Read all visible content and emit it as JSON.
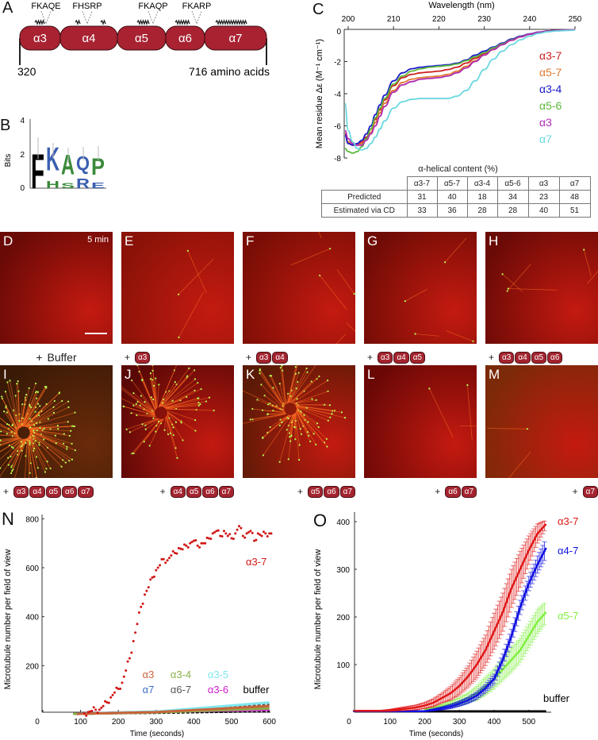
{
  "panel_a": {
    "label": "A",
    "domains": [
      "α3",
      "α4",
      "α5",
      "α6",
      "α7"
    ],
    "motifs": [
      "FKAQE",
      "FHSRP",
      "FKAQP",
      "FKARP"
    ],
    "start": "320",
    "end": "716 amino acids",
    "domain_color": "#a82232"
  },
  "panel_b": {
    "label": "B",
    "ylabel": "Bits",
    "yticks": [
      "0",
      "2",
      "4"
    ],
    "logo": [
      [
        {
          "letter": "F",
          "bits": 2.1,
          "color": "#000000"
        }
      ],
      [
        {
          "letter": "H",
          "bits": 0.45,
          "color": "#3a8a3a"
        },
        {
          "letter": "K",
          "bits": 1.4,
          "color": "#3a5fb0"
        }
      ],
      [
        {
          "letter": "S",
          "bits": 0.3,
          "color": "#3a8a3a"
        },
        {
          "letter": "A",
          "bits": 1.2,
          "color": "#3a8a3a"
        }
      ],
      [
        {
          "letter": "R",
          "bits": 0.6,
          "color": "#3a5fb0"
        },
        {
          "letter": "Q",
          "bits": 0.85,
          "color": "#3a5fb0"
        }
      ],
      [
        {
          "letter": "E",
          "bits": 0.35,
          "color": "#3a5fb0"
        },
        {
          "letter": "P",
          "bits": 1.0,
          "color": "#3a8a3a"
        }
      ]
    ]
  },
  "panel_c": {
    "label": "C",
    "table": {
      "title": "α-helical content (%)",
      "columns": [
        "α3-7",
        "α5-7",
        "α3-4",
        "α5-6",
        "α3",
        "α7"
      ],
      "rows": [
        {
          "label": "Predicted",
          "values": [
            "31",
            "40",
            "18",
            "34",
            "23",
            "48"
          ]
        },
        {
          "label": "Estimated via CD",
          "values": [
            "33",
            "36",
            "28",
            "28",
            "40",
            "51"
          ]
        }
      ]
    }
  },
  "images": {
    "row1": [
      {
        "letter": "D",
        "time": "5 min",
        "plus": "+",
        "text": "Buffer",
        "pills": []
      },
      {
        "letter": "E",
        "plus": "+",
        "pills": [
          "α3"
        ]
      },
      {
        "letter": "F",
        "plus": "+",
        "pills": [
          "α3",
          "α4"
        ]
      },
      {
        "letter": "G",
        "plus": "+",
        "pills": [
          "α3",
          "α4",
          "α5"
        ]
      },
      {
        "letter": "H",
        "plus": "+",
        "pills": [
          "α3",
          "α4",
          "α5",
          "α6"
        ]
      }
    ],
    "row2": [
      {
        "letter": "I",
        "plus": "+",
        "pills": [
          "α3",
          "α4",
          "α5",
          "α6",
          "α7"
        ]
      },
      {
        "letter": "J",
        "plus": "+",
        "pills": [
          "α4",
          "α5",
          "α6",
          "α7"
        ]
      },
      {
        "letter": "K",
        "plus": "+",
        "pills": [
          "α5",
          "α6",
          "α7"
        ]
      },
      {
        "letter": "L",
        "plus": "+",
        "pills": [
          "α6",
          "α7"
        ]
      },
      {
        "letter": "M",
        "plus": "+",
        "pills": [
          "α7"
        ]
      }
    ]
  },
  "panel_n": {
    "label": "N"
  },
  "panel_o": {
    "label": "O"
  },
  "chart_data": [
    {
      "type": "line",
      "xlabel": "Wavelength (nm)",
      "ylabel": "Mean residue Δε (M⁻¹ cm⁻¹)",
      "xlim": [
        200,
        250
      ],
      "ylim": [
        -8,
        0
      ],
      "xticks": [
        200,
        210,
        220,
        230,
        240,
        250
      ],
      "yticks": [
        0,
        -2,
        -4,
        -6,
        -8
      ],
      "legend": "right",
      "x": [
        199,
        200,
        201,
        202,
        203,
        204,
        205,
        206,
        207,
        208,
        210,
        212,
        214,
        216,
        218,
        220,
        222,
        224,
        226,
        228,
        230,
        232,
        234,
        236,
        238,
        240,
        242,
        244,
        246,
        248,
        250
      ],
      "series": [
        {
          "name": "α3-7",
          "color": "#cc1f1f",
          "values": [
            -6.5,
            -7.0,
            -7.2,
            -7.2,
            -7.0,
            -6.7,
            -6.2,
            -5.6,
            -5.0,
            -4.4,
            -3.5,
            -3.0,
            -2.8,
            -2.7,
            -2.65,
            -2.6,
            -2.5,
            -2.35,
            -2.1,
            -1.8,
            -1.5,
            -1.2,
            -0.9,
            -0.65,
            -0.45,
            -0.3,
            -0.18,
            -0.1,
            -0.06,
            -0.04,
            -0.03
          ]
        },
        {
          "name": "α5-7",
          "color": "#e07a30",
          "values": [
            -6.6,
            -7.0,
            -7.2,
            -7.2,
            -7.1,
            -6.8,
            -6.4,
            -5.8,
            -5.2,
            -4.6,
            -3.8,
            -3.3,
            -3.1,
            -3.0,
            -2.95,
            -2.9,
            -2.8,
            -2.6,
            -2.3,
            -1.95,
            -1.6,
            -1.25,
            -0.95,
            -0.68,
            -0.47,
            -0.3,
            -0.18,
            -0.1,
            -0.06,
            -0.04,
            -0.03
          ]
        },
        {
          "name": "α3-4",
          "color": "#1a1acc",
          "values": [
            -6.6,
            -7.1,
            -7.2,
            -7.1,
            -6.9,
            -6.5,
            -6.0,
            -5.3,
            -4.7,
            -4.1,
            -3.2,
            -2.7,
            -2.45,
            -2.35,
            -2.3,
            -2.25,
            -2.2,
            -2.1,
            -1.9,
            -1.6,
            -1.35,
            -1.1,
            -0.85,
            -0.6,
            -0.42,
            -0.28,
            -0.17,
            -0.1,
            -0.06,
            -0.04,
            -0.03
          ]
        },
        {
          "name": "α5-6",
          "color": "#5cb83a",
          "values": [
            -7.4,
            -7.6,
            -7.7,
            -7.6,
            -7.3,
            -6.8,
            -6.2,
            -5.5,
            -4.9,
            -4.3,
            -3.4,
            -2.9,
            -2.6,
            -2.45,
            -2.35,
            -2.3,
            -2.25,
            -2.15,
            -1.95,
            -1.7,
            -1.45,
            -1.15,
            -0.9,
            -0.65,
            -0.45,
            -0.3,
            -0.18,
            -0.1,
            -0.06,
            -0.04,
            -0.03
          ]
        },
        {
          "name": "α3",
          "color": "#b02ab0",
          "values": [
            -6.3,
            -6.8,
            -7.1,
            -7.2,
            -7.2,
            -6.9,
            -6.5,
            -6.0,
            -5.4,
            -4.8,
            -3.9,
            -3.45,
            -3.25,
            -3.1,
            -3.05,
            -3.0,
            -2.9,
            -2.7,
            -2.4,
            -2.0,
            -1.6,
            -1.25,
            -0.95,
            -0.68,
            -0.47,
            -0.3,
            -0.18,
            -0.1,
            -0.06,
            -0.04,
            -0.03
          ]
        },
        {
          "name": "α7",
          "color": "#6ad8e0",
          "values": [
            -4.6,
            -6.3,
            -7.0,
            -7.4,
            -7.5,
            -7.4,
            -7.1,
            -6.7,
            -6.2,
            -5.7,
            -4.9,
            -4.5,
            -4.35,
            -4.3,
            -4.3,
            -4.3,
            -4.3,
            -4.15,
            -3.8,
            -3.2,
            -2.5,
            -1.85,
            -1.35,
            -0.95,
            -0.65,
            -0.42,
            -0.25,
            -0.15,
            -0.1,
            -0.07,
            -0.05
          ]
        }
      ]
    },
    {
      "type": "scatter",
      "xlabel": "Time (seconds)",
      "ylabel": "Microtubule number per field of view",
      "xlim": [
        0,
        600
      ],
      "ylim": [
        0,
        800
      ],
      "xticks": [
        0,
        100,
        200,
        300,
        400,
        500,
        600
      ],
      "yticks": [
        200,
        400,
        600,
        800
      ],
      "series": [
        {
          "name": "α3-7",
          "color": "#d01515",
          "x": [
            110,
            120,
            130,
            140,
            150,
            160,
            170,
            180,
            190,
            200,
            210,
            220,
            230,
            240,
            250,
            260,
            270,
            280,
            290,
            300,
            310,
            320,
            330,
            340,
            350,
            360,
            370,
            380,
            390,
            400,
            410,
            420,
            430,
            440,
            450,
            460,
            470,
            480,
            490,
            500,
            510,
            520,
            530,
            540,
            550,
            560,
            570,
            580,
            590,
            600
          ],
          "y": [
            5,
            10,
            15,
            20,
            20,
            35,
            50,
            70,
            90,
            105,
            130,
            180,
            230,
            300,
            370,
            440,
            490,
            520,
            560,
            590,
            610,
            635,
            630,
            650,
            660,
            680,
            675,
            690,
            700,
            710,
            690,
            700,
            700,
            720,
            740,
            750,
            730,
            750,
            730,
            720,
            740,
            770,
            730,
            740,
            750,
            710,
            740,
            730,
            740,
            740
          ]
        },
        {
          "name": "α3",
          "color": "#c8643a",
          "x": [
            90,
            300,
            600
          ],
          "y": [
            3,
            10,
            35
          ]
        },
        {
          "name": "α3-4",
          "color": "#8bb04a",
          "x": [
            80,
            300,
            600
          ],
          "y": [
            3,
            9,
            25
          ]
        },
        {
          "name": "α3-5",
          "color": "#7fe8f0",
          "x": [
            90,
            300,
            600
          ],
          "y": [
            3,
            12,
            50
          ]
        },
        {
          "name": "α7",
          "color": "#3b6fc4",
          "x": [
            90,
            300,
            600
          ],
          "y": [
            4,
            12,
            30
          ]
        },
        {
          "name": "α6-7",
          "color": "#555555",
          "x": [
            90,
            300,
            600
          ],
          "y": [
            3,
            10,
            40
          ]
        },
        {
          "name": "α3-6",
          "color": "#d020d0",
          "x": [
            90,
            300,
            600
          ],
          "y": [
            3,
            11,
            20
          ]
        },
        {
          "name": "buffer",
          "color": "#000000",
          "x": [
            90,
            300,
            600
          ],
          "y": [
            2,
            5,
            12
          ]
        }
      ]
    },
    {
      "type": "line",
      "xlabel": "Time (seconds)",
      "ylabel": "Microtubule number per field of view",
      "xlim": [
        0,
        560
      ],
      "ylim": [
        0,
        420
      ],
      "xticks": [
        0,
        100,
        200,
        300,
        400,
        500
      ],
      "yticks": [
        100,
        200,
        300,
        400
      ],
      "error_bars": true,
      "series": [
        {
          "name": "α3-7",
          "color": "#e01818",
          "x": [
            0,
            25,
            50,
            75,
            100,
            125,
            150,
            175,
            200,
            225,
            250,
            275,
            300,
            325,
            350,
            375,
            400,
            425,
            450,
            475,
            500,
            525,
            550
          ],
          "y": [
            3,
            3,
            3,
            3,
            4,
            6,
            8,
            10,
            14,
            20,
            30,
            40,
            55,
            75,
            100,
            130,
            170,
            210,
            260,
            300,
            340,
            375,
            395
          ],
          "err": [
            1,
            1,
            1,
            1,
            2,
            3,
            4,
            5,
            6,
            8,
            10,
            14,
            18,
            22,
            28,
            32,
            38,
            40,
            40,
            38,
            30,
            20,
            8
          ]
        },
        {
          "name": "α4-7",
          "color": "#1010e0",
          "x": [
            0,
            50,
            100,
            150,
            200,
            225,
            250,
            275,
            300,
            325,
            350,
            375,
            400,
            425,
            450,
            475,
            500,
            525,
            550
          ],
          "y": [
            2,
            2,
            2,
            2,
            2,
            5,
            8,
            12,
            18,
            25,
            35,
            50,
            70,
            110,
            160,
            220,
            270,
            310,
            345
          ],
          "err": [
            1,
            1,
            1,
            1,
            1,
            2,
            3,
            4,
            5,
            6,
            7,
            8,
            10,
            12,
            14,
            15,
            15,
            18,
            20
          ]
        },
        {
          "name": "α5-7",
          "color": "#80f040",
          "x": [
            200,
            225,
            250,
            275,
            300,
            325,
            350,
            375,
            400,
            425,
            450,
            475,
            500,
            525,
            550
          ],
          "y": [
            5,
            8,
            12,
            17,
            22,
            30,
            40,
            55,
            70,
            90,
            110,
            130,
            160,
            190,
            210
          ],
          "err": [
            2,
            3,
            4,
            6,
            8,
            10,
            14,
            18,
            20,
            22,
            25,
            25,
            25,
            25,
            22
          ]
        },
        {
          "name": "buffer",
          "color": "#000000",
          "x": [
            0,
            100,
            200,
            300,
            400,
            500,
            550
          ],
          "y": [
            2,
            2,
            2,
            2,
            2,
            2,
            2
          ],
          "err": [
            1,
            1,
            1,
            1,
            1,
            1,
            1
          ]
        }
      ]
    }
  ]
}
